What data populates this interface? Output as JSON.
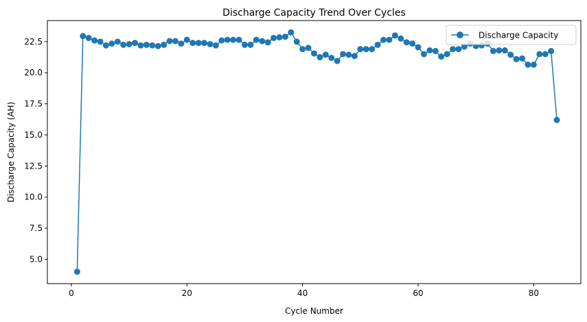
{
  "chart_data": {
    "type": "line",
    "title": "Discharge Capacity Trend Over Cycles",
    "xlabel": "Cycle Number",
    "ylabel": "Discharge Capacity (AH)",
    "xlim": [
      -4.15,
      88.15
    ],
    "ylim": [
      3.04,
      24.2
    ],
    "xticks": [
      0,
      20,
      40,
      60,
      80
    ],
    "yticks": [
      5.0,
      7.5,
      10.0,
      12.5,
      15.0,
      17.5,
      20.0,
      22.5
    ],
    "xtick_labels": [
      "0",
      "20",
      "40",
      "60",
      "80"
    ],
    "ytick_labels": [
      "5.0",
      "7.5",
      "10.0",
      "12.5",
      "15.0",
      "17.5",
      "20.0",
      "22.5"
    ],
    "grid": false,
    "legend_position": "top-right",
    "colors": {
      "series": "#1f77b4"
    },
    "series": [
      {
        "name": "Discharge Capacity",
        "marker": "circle",
        "x": [
          1,
          2,
          3,
          4,
          5,
          6,
          7,
          8,
          9,
          10,
          11,
          12,
          13,
          14,
          15,
          16,
          17,
          18,
          19,
          20,
          21,
          22,
          23,
          24,
          25,
          26,
          27,
          28,
          29,
          30,
          31,
          32,
          33,
          34,
          35,
          36,
          37,
          38,
          39,
          40,
          41,
          42,
          43,
          44,
          45,
          46,
          47,
          48,
          49,
          50,
          51,
          52,
          53,
          54,
          55,
          56,
          57,
          58,
          59,
          60,
          61,
          62,
          63,
          64,
          65,
          66,
          67,
          68,
          69,
          70,
          71,
          72,
          73,
          74,
          75,
          76,
          77,
          78,
          79,
          80,
          81,
          82,
          83,
          84
        ],
        "y": [
          4.0,
          22.95,
          22.8,
          22.6,
          22.5,
          22.2,
          22.35,
          22.5,
          22.25,
          22.3,
          22.4,
          22.2,
          22.25,
          22.2,
          22.15,
          22.25,
          22.55,
          22.55,
          22.35,
          22.65,
          22.4,
          22.4,
          22.4,
          22.3,
          22.2,
          22.6,
          22.65,
          22.65,
          22.65,
          22.25,
          22.25,
          22.65,
          22.55,
          22.45,
          22.8,
          22.85,
          22.9,
          23.25,
          22.5,
          21.9,
          22.0,
          21.55,
          21.25,
          21.45,
          21.2,
          20.95,
          21.5,
          21.45,
          21.35,
          21.9,
          21.9,
          21.9,
          22.25,
          22.65,
          22.65,
          23.0,
          22.75,
          22.45,
          22.35,
          22.05,
          21.5,
          21.8,
          21.75,
          21.3,
          21.5,
          21.9,
          21.9,
          22.1,
          22.35,
          22.15,
          22.2,
          22.35,
          21.75,
          21.8,
          21.8,
          21.45,
          21.1,
          21.15,
          20.65,
          20.65,
          21.5,
          21.5,
          21.75,
          16.2
        ]
      }
    ]
  }
}
